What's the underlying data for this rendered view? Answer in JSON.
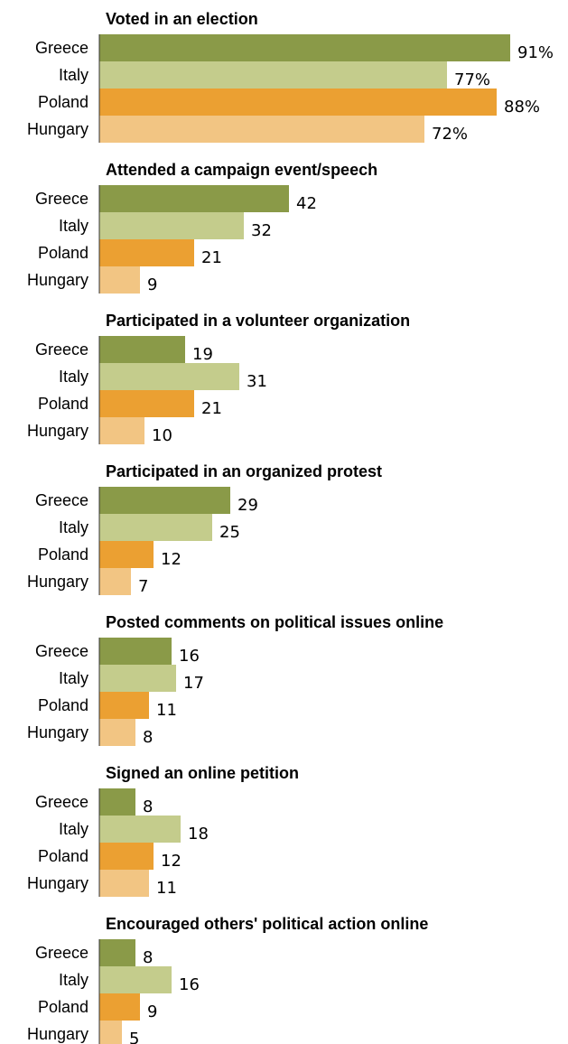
{
  "colors": {
    "Greece": "#8a9a48",
    "Italy": "#c4cc8c",
    "Poland": "#eba032",
    "Hungary": "#f2c583",
    "axis": "#333333"
  },
  "chart_data": [
    {
      "type": "bar",
      "title": "Voted in an election",
      "categories": [
        "Greece",
        "Italy",
        "Poland",
        "Hungary"
      ],
      "values": [
        91,
        77,
        88,
        72
      ],
      "value_labels": [
        "91%",
        "77%",
        "88%",
        "72%"
      ],
      "xlim": [
        0,
        100
      ]
    },
    {
      "type": "bar",
      "title": "Attended a campaign event/speech",
      "categories": [
        "Greece",
        "Italy",
        "Poland",
        "Hungary"
      ],
      "values": [
        42,
        32,
        21,
        9
      ],
      "value_labels": [
        "42",
        "32",
        "21",
        "9"
      ],
      "xlim": [
        0,
        100
      ]
    },
    {
      "type": "bar",
      "title": "Participated in a volunteer organization",
      "categories": [
        "Greece",
        "Italy",
        "Poland",
        "Hungary"
      ],
      "values": [
        19,
        31,
        21,
        10
      ],
      "value_labels": [
        "19",
        "31",
        "21",
        "10"
      ],
      "xlim": [
        0,
        100
      ]
    },
    {
      "type": "bar",
      "title": "Participated in an organized protest",
      "categories": [
        "Greece",
        "Italy",
        "Poland",
        "Hungary"
      ],
      "values": [
        29,
        25,
        12,
        7
      ],
      "value_labels": [
        "29",
        "25",
        "12",
        "7"
      ],
      "xlim": [
        0,
        100
      ]
    },
    {
      "type": "bar",
      "title": "Posted comments on political issues online",
      "categories": [
        "Greece",
        "Italy",
        "Poland",
        "Hungary"
      ],
      "values": [
        16,
        17,
        11,
        8
      ],
      "value_labels": [
        "16",
        "17",
        "11",
        "8"
      ],
      "xlim": [
        0,
        100
      ]
    },
    {
      "type": "bar",
      "title": "Signed an online petition",
      "categories": [
        "Greece",
        "Italy",
        "Poland",
        "Hungary"
      ],
      "values": [
        8,
        18,
        12,
        11
      ],
      "value_labels": [
        "8",
        "18",
        "12",
        "11"
      ],
      "xlim": [
        0,
        100
      ]
    },
    {
      "type": "bar",
      "title": "Encouraged others' political action online",
      "categories": [
        "Greece",
        "Italy",
        "Poland",
        "Hungary"
      ],
      "values": [
        8,
        16,
        9,
        5
      ],
      "value_labels": [
        "8",
        "16",
        "9",
        "5"
      ],
      "xlim": [
        0,
        100
      ]
    }
  ]
}
